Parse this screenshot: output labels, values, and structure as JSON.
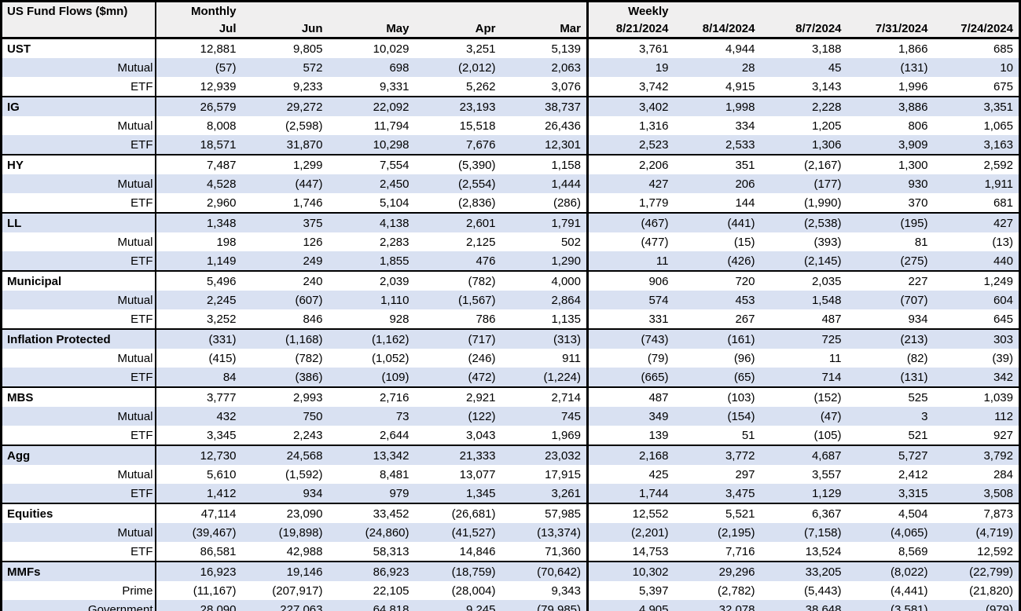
{
  "title": "US Fund Flows ($mn)",
  "header": {
    "monthly_label": "Monthly",
    "weekly_label": "Weekly",
    "monthly_columns": [
      "Jul",
      "Jun",
      "May",
      "Apr",
      "Mar"
    ],
    "weekly_columns": [
      "8/21/2024",
      "8/14/2024",
      "8/7/2024",
      "7/31/2024",
      "7/24/2024"
    ]
  },
  "rows": [
    {
      "label": "UST",
      "type": "group",
      "values": [
        "12,881",
        "9,805",
        "10,029",
        "3,251",
        "5,139",
        "3,761",
        "4,944",
        "3,188",
        "1,866",
        "685"
      ]
    },
    {
      "label": "Mutual",
      "type": "sub",
      "values": [
        "(57)",
        "572",
        "698",
        "(2,012)",
        "2,063",
        "19",
        "28",
        "45",
        "(131)",
        "10"
      ]
    },
    {
      "label": "ETF",
      "type": "sub",
      "values": [
        "12,939",
        "9,233",
        "9,331",
        "5,262",
        "3,076",
        "3,742",
        "4,915",
        "3,143",
        "1,996",
        "675"
      ]
    },
    {
      "label": "IG",
      "type": "group",
      "values": [
        "26,579",
        "29,272",
        "22,092",
        "23,193",
        "38,737",
        "3,402",
        "1,998",
        "2,228",
        "3,886",
        "3,351"
      ]
    },
    {
      "label": "Mutual",
      "type": "sub",
      "values": [
        "8,008",
        "(2,598)",
        "11,794",
        "15,518",
        "26,436",
        "1,316",
        "334",
        "1,205",
        "806",
        "1,065"
      ]
    },
    {
      "label": "ETF",
      "type": "sub",
      "values": [
        "18,571",
        "31,870",
        "10,298",
        "7,676",
        "12,301",
        "2,523",
        "2,533",
        "1,306",
        "3,909",
        "3,163"
      ]
    },
    {
      "label": "HY",
      "type": "group",
      "values": [
        "7,487",
        "1,299",
        "7,554",
        "(5,390)",
        "1,158",
        "2,206",
        "351",
        "(2,167)",
        "1,300",
        "2,592"
      ]
    },
    {
      "label": "Mutual",
      "type": "sub",
      "values": [
        "4,528",
        "(447)",
        "2,450",
        "(2,554)",
        "1,444",
        "427",
        "206",
        "(177)",
        "930",
        "1,911"
      ]
    },
    {
      "label": "ETF",
      "type": "sub",
      "values": [
        "2,960",
        "1,746",
        "5,104",
        "(2,836)",
        "(286)",
        "1,779",
        "144",
        "(1,990)",
        "370",
        "681"
      ]
    },
    {
      "label": "LL",
      "type": "group",
      "values": [
        "1,348",
        "375",
        "4,138",
        "2,601",
        "1,791",
        "(467)",
        "(441)",
        "(2,538)",
        "(195)",
        "427"
      ]
    },
    {
      "label": "Mutual",
      "type": "sub",
      "values": [
        "198",
        "126",
        "2,283",
        "2,125",
        "502",
        "(477)",
        "(15)",
        "(393)",
        "81",
        "(13)"
      ]
    },
    {
      "label": "ETF",
      "type": "sub",
      "values": [
        "1,149",
        "249",
        "1,855",
        "476",
        "1,290",
        "11",
        "(426)",
        "(2,145)",
        "(275)",
        "440"
      ]
    },
    {
      "label": "Municipal",
      "type": "group",
      "values": [
        "5,496",
        "240",
        "2,039",
        "(782)",
        "4,000",
        "906",
        "720",
        "2,035",
        "227",
        "1,249"
      ]
    },
    {
      "label": "Mutual",
      "type": "sub",
      "values": [
        "2,245",
        "(607)",
        "1,110",
        "(1,567)",
        "2,864",
        "574",
        "453",
        "1,548",
        "(707)",
        "604"
      ]
    },
    {
      "label": "ETF",
      "type": "sub",
      "values": [
        "3,252",
        "846",
        "928",
        "786",
        "1,135",
        "331",
        "267",
        "487",
        "934",
        "645"
      ]
    },
    {
      "label": "Inflation Protected",
      "type": "group",
      "values": [
        "(331)",
        "(1,168)",
        "(1,162)",
        "(717)",
        "(313)",
        "(743)",
        "(161)",
        "725",
        "(213)",
        "303"
      ]
    },
    {
      "label": "Mutual",
      "type": "sub",
      "values": [
        "(415)",
        "(782)",
        "(1,052)",
        "(246)",
        "911",
        "(79)",
        "(96)",
        "11",
        "(82)",
        "(39)"
      ]
    },
    {
      "label": "ETF",
      "type": "sub",
      "values": [
        "84",
        "(386)",
        "(109)",
        "(472)",
        "(1,224)",
        "(665)",
        "(65)",
        "714",
        "(131)",
        "342"
      ]
    },
    {
      "label": "MBS",
      "type": "group",
      "values": [
        "3,777",
        "2,993",
        "2,716",
        "2,921",
        "2,714",
        "487",
        "(103)",
        "(152)",
        "525",
        "1,039"
      ]
    },
    {
      "label": "Mutual",
      "type": "sub",
      "values": [
        "432",
        "750",
        "73",
        "(122)",
        "745",
        "349",
        "(154)",
        "(47)",
        "3",
        "112"
      ]
    },
    {
      "label": "ETF",
      "type": "sub",
      "values": [
        "3,345",
        "2,243",
        "2,644",
        "3,043",
        "1,969",
        "139",
        "51",
        "(105)",
        "521",
        "927"
      ]
    },
    {
      "label": "Agg",
      "type": "group",
      "values": [
        "12,730",
        "24,568",
        "13,342",
        "21,333",
        "23,032",
        "2,168",
        "3,772",
        "4,687",
        "5,727",
        "3,792"
      ]
    },
    {
      "label": "Mutual",
      "type": "sub",
      "values": [
        "5,610",
        "(1,592)",
        "8,481",
        "13,077",
        "17,915",
        "425",
        "297",
        "3,557",
        "2,412",
        "284"
      ]
    },
    {
      "label": "ETF",
      "type": "sub",
      "values": [
        "1,412",
        "934",
        "979",
        "1,345",
        "3,261",
        "1,744",
        "3,475",
        "1,129",
        "3,315",
        "3,508"
      ]
    },
    {
      "label": "Equities",
      "type": "group",
      "values": [
        "47,114",
        "23,090",
        "33,452",
        "(26,681)",
        "57,985",
        "12,552",
        "5,521",
        "6,367",
        "4,504",
        "7,873"
      ]
    },
    {
      "label": "Mutual",
      "type": "sub",
      "values": [
        "(39,467)",
        "(19,898)",
        "(24,860)",
        "(41,527)",
        "(13,374)",
        "(2,201)",
        "(2,195)",
        "(7,158)",
        "(4,065)",
        "(4,719)"
      ]
    },
    {
      "label": "ETF",
      "type": "sub",
      "values": [
        "86,581",
        "42,988",
        "58,313",
        "14,846",
        "71,360",
        "14,753",
        "7,716",
        "13,524",
        "8,569",
        "12,592"
      ]
    },
    {
      "label": "MMFs",
      "type": "group",
      "values": [
        "16,923",
        "19,146",
        "86,923",
        "(18,759)",
        "(70,642)",
        "10,302",
        "29,296",
        "33,205",
        "(8,022)",
        "(22,799)"
      ]
    },
    {
      "label": "Prime",
      "type": "sub",
      "values": [
        "(11,167)",
        "(207,917)",
        "22,105",
        "(28,004)",
        "9,343",
        "5,397",
        "(2,782)",
        "(5,443)",
        "(4,441)",
        "(21,820)"
      ]
    },
    {
      "label": "Government",
      "type": "sub",
      "values": [
        "28,090",
        "227,063",
        "64,818",
        "9,245",
        "(79,985)",
        "4,905",
        "32,078",
        "38,648",
        "(3,581)",
        "(979)"
      ]
    }
  ],
  "colors": {
    "band_blue": "#D9E1F2",
    "header_gray": "#F0EFEF",
    "border_black": "#000000"
  }
}
